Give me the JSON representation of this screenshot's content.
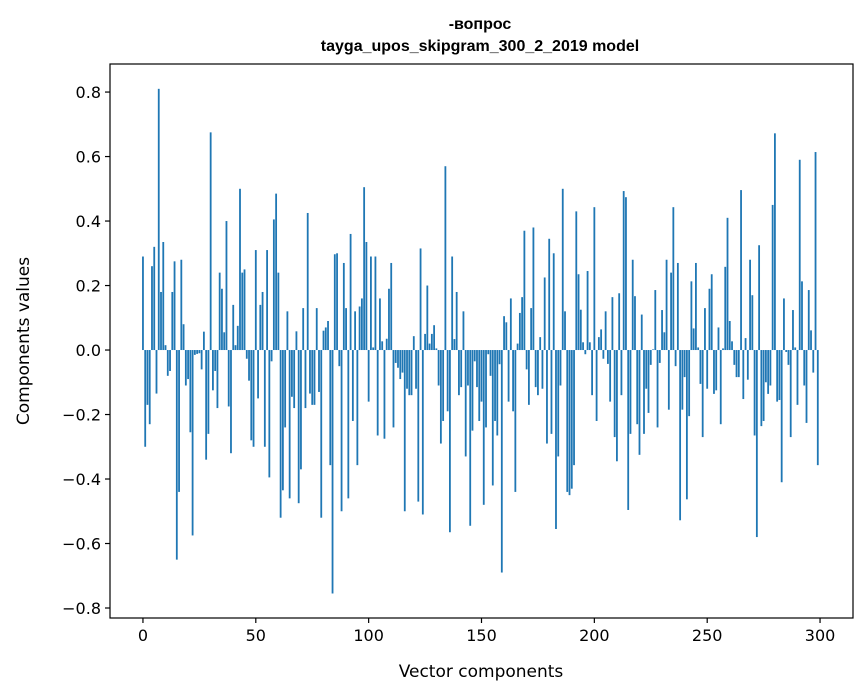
{
  "chart_data": {
    "type": "bar",
    "title": [
      "-вопрос",
      "tayga_upos_skipgram_300_2_2019 model"
    ],
    "xlabel": "Vector components",
    "ylabel": "Components values",
    "xlim": [
      -14.6,
      314.6
    ],
    "ylim": [
      -0.831,
      0.887
    ],
    "xticks": [
      0,
      50,
      100,
      150,
      200,
      250,
      300
    ],
    "xtick_labels": [
      "0",
      "50",
      "100",
      "150",
      "200",
      "250",
      "300"
    ],
    "yticks": [
      -0.8,
      -0.6,
      -0.4,
      -0.2,
      0.0,
      0.2,
      0.4,
      0.6,
      0.8
    ],
    "ytick_labels": [
      "−0.8",
      "−0.6",
      "−0.4",
      "−0.2",
      "0.0",
      "0.2",
      "0.4",
      "0.6",
      "0.8"
    ],
    "bar_color": "#1f77b4",
    "grid": false,
    "values": [
      0.29,
      -0.3,
      -0.17,
      -0.23,
      0.26,
      0.32,
      -0.135,
      0.81,
      0.18,
      0.335,
      0.015,
      -0.08,
      -0.065,
      0.18,
      0.275,
      -0.65,
      -0.44,
      0.28,
      0.08,
      -0.11,
      -0.09,
      -0.255,
      -0.575,
      -0.015,
      -0.012,
      -0.01,
      -0.06,
      0.057,
      -0.34,
      -0.26,
      0.675,
      -0.125,
      -0.065,
      -0.18,
      0.24,
      0.19,
      0.055,
      0.4,
      -0.175,
      -0.32,
      0.14,
      0.015,
      0.075,
      0.5,
      0.24,
      0.25,
      -0.027,
      -0.095,
      -0.28,
      -0.3,
      0.31,
      -0.15,
      0.14,
      0.18,
      -0.3,
      0.31,
      -0.395,
      -0.035,
      0.405,
      0.485,
      0.24,
      -0.52,
      -0.435,
      -0.24,
      0.12,
      -0.46,
      -0.145,
      -0.18,
      0.058,
      -0.475,
      -0.37,
      0.13,
      -0.18,
      0.425,
      -0.135,
      -0.17,
      -0.17,
      0.13,
      -0.13,
      -0.52,
      0.06,
      0.07,
      0.09,
      -0.357,
      -0.755,
      0.297,
      0.3,
      -0.05,
      -0.5,
      0.27,
      0.13,
      -0.46,
      0.36,
      -0.22,
      0.12,
      -0.357,
      0.135,
      0.16,
      0.505,
      0.335,
      -0.16,
      0.29,
      0.008,
      0.29,
      -0.265,
      0.16,
      0.027,
      -0.275,
      0.035,
      0.19,
      0.27,
      -0.24,
      -0.04,
      -0.055,
      -0.09,
      -0.07,
      -0.5,
      -0.12,
      -0.14,
      -0.14,
      0.043,
      -0.12,
      -0.47,
      0.315,
      -0.51,
      0.05,
      0.2,
      0.02,
      0.05,
      0.077,
      0.005,
      -0.11,
      -0.29,
      -0.22,
      0.57,
      -0.19,
      -0.565,
      0.29,
      0.034,
      0.18,
      -0.14,
      -0.115,
      0.12,
      -0.33,
      -0.11,
      -0.545,
      -0.25,
      -0.035,
      -0.115,
      -0.22,
      -0.16,
      -0.48,
      -0.24,
      -0.013,
      -0.08,
      -0.42,
      -0.22,
      -0.265,
      -0.044,
      -0.69,
      0.105,
      0.086,
      -0.16,
      0.16,
      -0.19,
      -0.44,
      0.02,
      0.115,
      0.164,
      0.37,
      -0.06,
      -0.17,
      0.13,
      0.38,
      -0.115,
      -0.14,
      0.04,
      -0.12,
      0.225,
      -0.29,
      0.345,
      -0.26,
      0.3,
      -0.555,
      -0.33,
      -0.11,
      0.5,
      0.12,
      -0.44,
      -0.45,
      -0.43,
      -0.357,
      0.43,
      0.235,
      0.125,
      0.024,
      -0.013,
      0.245,
      0.024,
      -0.14,
      0.443,
      -0.22,
      0.04,
      0.064,
      -0.027,
      0.12,
      -0.043,
      -0.16,
      0.164,
      -0.27,
      -0.345,
      0.176,
      -0.14,
      0.493,
      0.474,
      -0.496,
      -0.26,
      0.28,
      0.167,
      -0.23,
      -0.325,
      0.11,
      -0.26,
      -0.12,
      -0.195,
      -0.046,
      0.002,
      0.186,
      -0.24,
      -0.04,
      0.124,
      0.055,
      0.28,
      -0.185,
      0.24,
      0.443,
      -0.05,
      0.27,
      -0.528,
      -0.185,
      -0.084,
      -0.463,
      -0.205,
      0.213,
      0.067,
      0.27,
      0.008,
      -0.105,
      -0.27,
      0.13,
      -0.12,
      0.19,
      0.235,
      -0.136,
      -0.125,
      0.07,
      -0.23,
      0.005,
      0.258,
      0.41,
      0.09,
      0.027,
      -0.046,
      -0.084,
      -0.084,
      0.496,
      -0.152,
      0.037,
      -0.092,
      0.28,
      0.17,
      -0.265,
      -0.58,
      0.325,
      -0.236,
      -0.22,
      -0.1,
      -0.136,
      -0.11,
      0.45,
      0.672,
      -0.16,
      -0.155,
      -0.41,
      0.16,
      -0.006,
      -0.046,
      -0.27,
      0.124,
      0.008,
      -0.17,
      0.59,
      0.213,
      -0.11,
      -0.226,
      0.186,
      0.061,
      -0.07,
      0.614,
      -0.357
    ]
  }
}
